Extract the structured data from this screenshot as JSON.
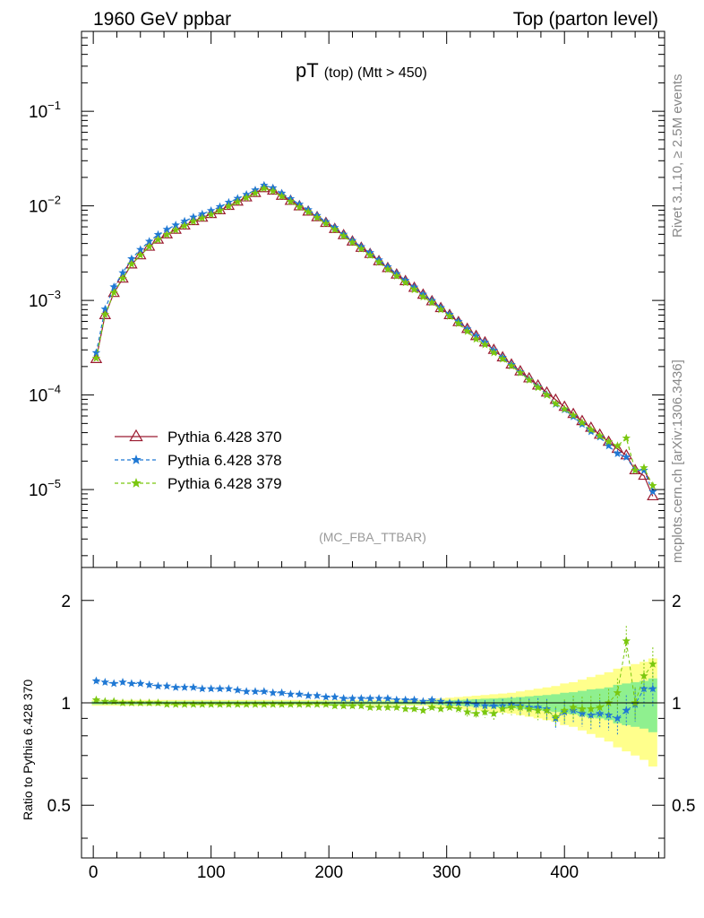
{
  "header": {
    "left": "1960 GeV ppbar",
    "right": "Top (parton level)"
  },
  "side_labels": {
    "rivet": "Rivet 3.1.10, ≥ 2.5M events",
    "mcplots": "mcplots.cern.ch [arXiv:1306.3436]"
  },
  "chart_data": [
    {
      "type": "line",
      "title": "pT",
      "title_sub": "(top) (Mtt > 450)",
      "watermark": "(MC_FBA_TTBAR)",
      "xlim": [
        -10,
        485
      ],
      "ylim": [
        1.5e-06,
        0.7
      ],
      "yscale": "log",
      "x_ticks": [
        0,
        100,
        200,
        300,
        400
      ],
      "y_ticks": [
        {
          "base": "10",
          "exp": "−1",
          "value": 0.1
        },
        {
          "base": "10",
          "exp": "−2",
          "value": 0.01
        },
        {
          "base": "10",
          "exp": "−3",
          "value": 0.001
        },
        {
          "base": "10",
          "exp": "−4",
          "value": 0.0001
        },
        {
          "base": "10",
          "exp": "−5",
          "value": 1e-05
        }
      ],
      "legend_position": "bottom-left",
      "x": [
        2.5,
        10,
        17.5,
        25,
        32.5,
        40,
        47.5,
        55,
        62.5,
        70,
        77.5,
        85,
        92.5,
        100,
        107.5,
        115,
        122.5,
        130,
        137.5,
        145,
        152.5,
        160,
        167.5,
        175,
        182.5,
        190,
        197.5,
        205,
        212.5,
        220,
        227.5,
        235,
        242.5,
        250,
        257.5,
        265,
        272.5,
        280,
        287.5,
        295,
        302.5,
        310,
        317.5,
        325,
        332.5,
        340,
        347.5,
        355,
        362.5,
        370,
        377.5,
        385,
        392.5,
        400,
        407.5,
        415,
        422.5,
        430,
        437.5,
        445,
        452.5,
        460,
        467.5,
        475
      ],
      "series": [
        {
          "name": "Pythia 6.428 370",
          "color": "#9b1b30",
          "marker": "open-triangle",
          "line": "solid",
          "values": [
            0.00024,
            0.0007,
            0.0012,
            0.0017,
            0.0024,
            0.003,
            0.0037,
            0.0044,
            0.005,
            0.0056,
            0.0062,
            0.0069,
            0.0075,
            0.0082,
            0.009,
            0.01,
            0.0111,
            0.0123,
            0.0137,
            0.0154,
            0.0145,
            0.0128,
            0.0113,
            0.0099,
            0.0087,
            0.0076,
            0.0066,
            0.0057,
            0.0049,
            0.0042,
            0.0036,
            0.0031,
            0.0026,
            0.0022,
            0.00188,
            0.0016,
            0.00136,
            0.00115,
            0.00098,
            0.00083,
            0.0007,
            0.00059,
            0.0005,
            0.00042,
            0.00036,
            0.0003,
            0.00025,
            0.00021,
            0.000178,
            0.00015,
            0.000126,
            0.000106,
            8.9e-05,
            7.5e-05,
            6.3e-05,
            5.3e-05,
            4.5e-05,
            3.8e-05,
            3.2e-05,
            2.7e-05,
            2.3e-05,
            1.6e-05,
            1.4e-05,
            8.5e-06
          ]
        },
        {
          "name": "Pythia 6.428 378",
          "color": "#1f78d4",
          "marker": "star",
          "line": "dashed",
          "values": [
            0.00028,
            0.00081,
            0.00139,
            0.00196,
            0.00276,
            0.00345,
            0.00422,
            0.00497,
            0.00563,
            0.00627,
            0.00688,
            0.0076,
            0.0082,
            0.0089,
            0.0098,
            0.0109,
            0.012,
            0.0132,
            0.0147,
            0.0165,
            0.0155,
            0.0136,
            0.0119,
            0.0104,
            0.0091,
            0.0079,
            0.0068,
            0.0059,
            0.005,
            0.0043,
            0.0037,
            0.0032,
            0.00268,
            0.00227,
            0.00192,
            0.00163,
            0.00138,
            0.00116,
            0.000995,
            0.00084,
            0.00071,
            0.0006,
            0.0005,
            0.00042,
            0.00036,
            0.000296,
            0.00025,
            0.00021,
            0.000175,
            0.000146,
            0.000122,
            0.000101,
            8e-05,
            7e-05,
            5.9e-05,
            4.9e-05,
            4.1e-05,
            3.6e-05,
            2.9e-05,
            2.4e-05,
            2.2e-05,
            1.6e-05,
            1.6e-05,
            9.5e-06
          ]
        },
        {
          "name": "Pythia 6.428 379",
          "color": "#7ac70f",
          "marker": "star",
          "line": "dashed",
          "values": [
            0.000245,
            0.00071,
            0.00121,
            0.00171,
            0.00242,
            0.00301,
            0.00371,
            0.00439,
            0.00497,
            0.00556,
            0.00615,
            0.00684,
            0.00742,
            0.0081,
            0.0089,
            0.0099,
            0.011,
            0.0122,
            0.0136,
            0.0153,
            0.0143,
            0.0126,
            0.0111,
            0.0097,
            0.0086,
            0.0075,
            0.0065,
            0.0056,
            0.0048,
            0.0041,
            0.0035,
            0.003,
            0.00253,
            0.00213,
            0.00181,
            0.00154,
            0.0013,
            0.00109,
            0.00095,
            0.0008,
            0.00068,
            0.00057,
            0.00047,
            0.00039,
            0.00034,
            0.00028,
            0.00024,
            0.000203,
            0.000172,
            0.000144,
            0.00012,
            0.0001,
            8.1e-05,
            7.1e-05,
            6.1e-05,
            5.1e-05,
            4.3e-05,
            3.7e-05,
            3.2e-05,
            2.9e-05,
            3.5e-05,
            1.6e-05,
            1.7e-05,
            1.1e-05
          ]
        }
      ]
    },
    {
      "type": "line",
      "ylabel": "Ratio to Pythia 6.428 370",
      "xlim": [
        -10,
        485
      ],
      "ylim": [
        0.35,
        2.5
      ],
      "yscale": "log",
      "x_ticks": [
        0,
        100,
        200,
        300,
        400
      ],
      "y_ticks": [
        0.5,
        1,
        2
      ],
      "reference_line": 1,
      "band_yellow_halfwidth": [
        0.02,
        0.02,
        0.02,
        0.02,
        0.02,
        0.02,
        0.02,
        0.02,
        0.02,
        0.02,
        0.02,
        0.02,
        0.02,
        0.02,
        0.02,
        0.02,
        0.02,
        0.02,
        0.02,
        0.02,
        0.02,
        0.02,
        0.02,
        0.02,
        0.02,
        0.02,
        0.02,
        0.02,
        0.02,
        0.02,
        0.02,
        0.02,
        0.02,
        0.02,
        0.02,
        0.02,
        0.02,
        0.02,
        0.025,
        0.03,
        0.035,
        0.04,
        0.045,
        0.05,
        0.055,
        0.06,
        0.065,
        0.07,
        0.08,
        0.09,
        0.1,
        0.11,
        0.12,
        0.14,
        0.15,
        0.17,
        0.19,
        0.21,
        0.23,
        0.26,
        0.28,
        0.3,
        0.32,
        0.35
      ],
      "band_green_halfwidth": [
        0.01,
        0.01,
        0.01,
        0.01,
        0.01,
        0.01,
        0.01,
        0.01,
        0.01,
        0.01,
        0.01,
        0.01,
        0.01,
        0.01,
        0.01,
        0.01,
        0.01,
        0.01,
        0.01,
        0.01,
        0.01,
        0.01,
        0.01,
        0.01,
        0.01,
        0.01,
        0.01,
        0.01,
        0.01,
        0.01,
        0.01,
        0.01,
        0.01,
        0.01,
        0.01,
        0.01,
        0.01,
        0.01,
        0.012,
        0.015,
        0.018,
        0.02,
        0.022,
        0.025,
        0.028,
        0.03,
        0.033,
        0.036,
        0.04,
        0.045,
        0.05,
        0.055,
        0.06,
        0.07,
        0.075,
        0.085,
        0.095,
        0.1,
        0.11,
        0.13,
        0.14,
        0.15,
        0.16,
        0.18
      ],
      "series": [
        {
          "name": "Pythia 6.428 378",
          "color": "#1f78d4",
          "values": [
            1.16,
            1.15,
            1.14,
            1.15,
            1.14,
            1.14,
            1.13,
            1.12,
            1.12,
            1.11,
            1.11,
            1.11,
            1.1,
            1.1,
            1.1,
            1.1,
            1.09,
            1.08,
            1.08,
            1.08,
            1.07,
            1.07,
            1.06,
            1.06,
            1.05,
            1.05,
            1.04,
            1.04,
            1.03,
            1.03,
            1.03,
            1.03,
            1.03,
            1.03,
            1.02,
            1.02,
            1.02,
            1.01,
            1.02,
            1.01,
            1.0,
            1.0,
            1.0,
            0.99,
            0.98,
            0.98,
            0.98,
            0.99,
            0.98,
            0.97,
            0.97,
            0.96,
            0.9,
            0.94,
            0.95,
            0.93,
            0.92,
            0.93,
            0.92,
            0.9,
            0.95,
            0.99,
            1.1,
            1.1
          ]
        },
        {
          "name": "Pythia 6.428 379",
          "color": "#7ac70f",
          "values": [
            1.02,
            1.01,
            1.01,
            1.0,
            1.0,
            1.0,
            1.0,
            1.0,
            0.99,
            0.99,
            0.99,
            0.99,
            0.99,
            0.99,
            0.99,
            0.99,
            0.99,
            0.99,
            0.99,
            0.99,
            0.99,
            0.99,
            0.99,
            0.99,
            0.99,
            0.99,
            0.99,
            0.98,
            0.98,
            0.98,
            0.98,
            0.97,
            0.97,
            0.97,
            0.97,
            0.96,
            0.96,
            0.95,
            0.97,
            0.96,
            0.97,
            0.96,
            0.94,
            0.93,
            0.94,
            0.93,
            0.96,
            0.97,
            0.97,
            0.96,
            0.95,
            0.95,
            0.91,
            0.95,
            0.97,
            0.96,
            0.96,
            0.97,
            1.0,
            1.07,
            1.52,
            1.0,
            1.2,
            1.3
          ]
        }
      ]
    }
  ]
}
